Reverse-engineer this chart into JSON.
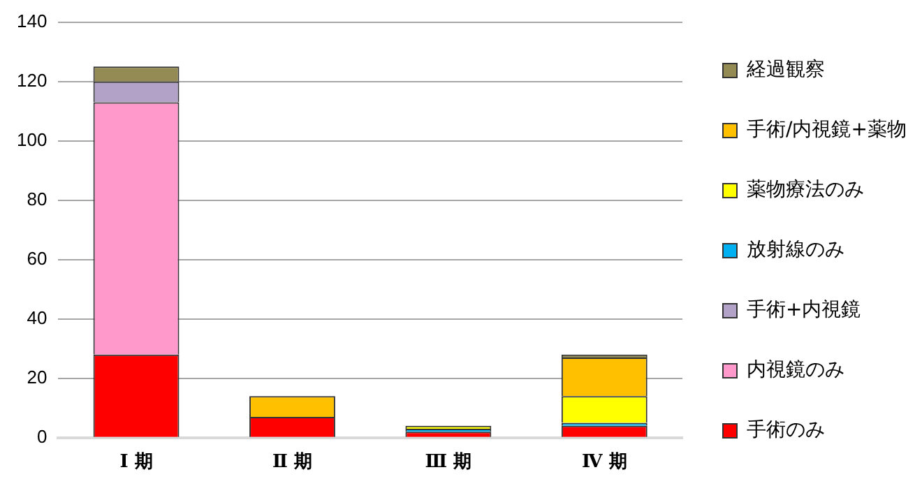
{
  "chart_data": {
    "type": "bar",
    "stacked": true,
    "categories": [
      "Ⅰ 期",
      "Ⅱ 期",
      "Ⅲ 期",
      "Ⅳ 期"
    ],
    "series": [
      {
        "name": "手術のみ",
        "color": "#ff0000",
        "values": [
          28,
          7,
          2,
          4
        ]
      },
      {
        "name": "内視鏡のみ",
        "color": "#ff99cc",
        "values": [
          85,
          0,
          0,
          0
        ]
      },
      {
        "name": "手術+内視鏡",
        "color": "#b3a2c7",
        "values": [
          7,
          0,
          0,
          0
        ]
      },
      {
        "name": "放射線のみ",
        "color": "#00b0f0",
        "values": [
          0,
          0,
          1,
          1
        ]
      },
      {
        "name": "薬物療法のみ",
        "color": "#ffff00",
        "values": [
          0,
          0,
          1,
          9
        ]
      },
      {
        "name": "手術/内視鏡+薬物",
        "color": "#ffc000",
        "values": [
          0,
          7,
          0,
          13
        ]
      },
      {
        "name": "経過観察",
        "color": "#948a54",
        "values": [
          5,
          0,
          0,
          1
        ]
      }
    ],
    "ylim": [
      0,
      140
    ],
    "yticks": [
      0,
      20,
      40,
      60,
      80,
      100,
      120,
      140
    ],
    "grid": "y",
    "legend": "right"
  }
}
